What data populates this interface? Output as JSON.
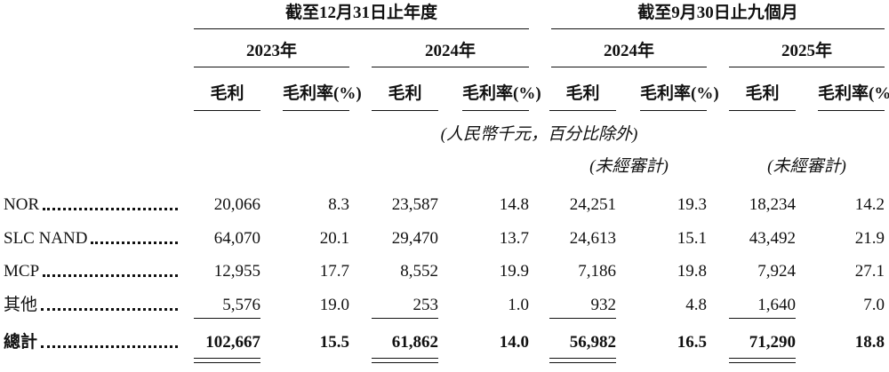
{
  "header": {
    "groups": [
      "截至12月31日止年度",
      "截至9月30日止九個月"
    ],
    "years": [
      "2023年",
      "2024年",
      "2024年",
      "2025年"
    ],
    "columns": [
      "毛利",
      "毛利率(%)",
      "毛利",
      "毛利率(%)",
      "毛利",
      "毛利率(%)",
      "毛利",
      "毛利率(%)"
    ],
    "unit_note": "(人民幣千元，百分比除外)",
    "unaudited": [
      "(未經審計)",
      "(未經審計)"
    ]
  },
  "table": {
    "rows": [
      [
        "NOR",
        "20,066",
        "8.3",
        "23,587",
        "14.8",
        "24,251",
        "19.3",
        "18,234",
        "14.2"
      ],
      [
        "SLC NAND",
        "64,070",
        "20.1",
        "29,470",
        "13.7",
        "24,613",
        "15.1",
        "43,492",
        "21.9"
      ],
      [
        "MCP",
        "12,955",
        "17.7",
        "8,552",
        "19.9",
        "7,186",
        "19.8",
        "7,924",
        "27.1"
      ],
      [
        "其他",
        "5,576",
        "19.0",
        "253",
        "1.0",
        "932",
        "4.8",
        "1,640",
        "7.0"
      ],
      [
        "總計",
        "102,667",
        "15.5",
        "61,862",
        "14.0",
        "56,982",
        "16.5",
        "71,290",
        "18.8"
      ]
    ]
  }
}
